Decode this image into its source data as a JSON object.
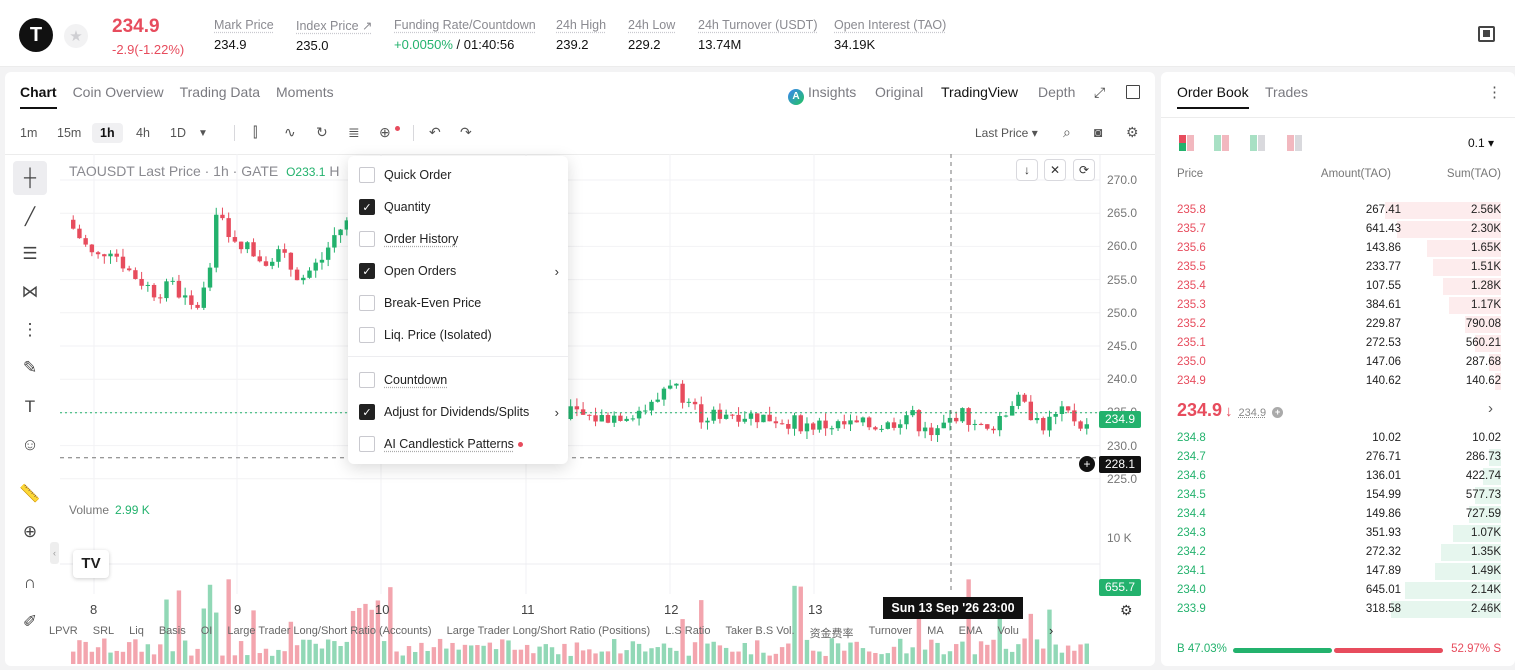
{
  "ticker": {
    "logo_letter": "T",
    "last_price": "234.9",
    "change": "-2.9(-1.22%)",
    "stats": [
      {
        "label": "Mark Price",
        "value": "234.9"
      },
      {
        "label": "Index Price ↗",
        "value": "235.0"
      },
      {
        "label": "Funding Rate/Countdown",
        "value_green": "+0.0050%",
        "value": " / 01:40:56"
      },
      {
        "label": "24h High",
        "value": "239.2"
      },
      {
        "label": "24h Low",
        "value": "229.2"
      },
      {
        "label": "24h Turnover (USDT)",
        "value": "13.74M"
      },
      {
        "label": "Open Interest (TAO)",
        "value": "34.19K"
      }
    ]
  },
  "chart_tabs": [
    "Chart",
    "Coin Overview",
    "Trading Data",
    "Moments"
  ],
  "view_tabs": {
    "insights": "Insights",
    "original": "Original",
    "tradingview": "TradingView",
    "depth": "Depth"
  },
  "toolbar": {
    "intervals": [
      "1m",
      "15m",
      "1h",
      "4h",
      "1D"
    ],
    "price_type": "Last Price ▾"
  },
  "chart": {
    "header": "TAOUSDT Last Price · 1h · GATE",
    "header_o": "O233.1",
    "header_h": "H",
    "yaxis": [
      "270.0",
      "265.0",
      "260.0",
      "255.0",
      "250.0",
      "245.0",
      "240.0",
      "235.0",
      "230.0",
      "225.0"
    ],
    "current_price": "234.9",
    "cursor_price": "228.1",
    "volume_label": "Volume",
    "volume_value": "2.99 K",
    "vol_axis": "10 K",
    "vol_tag": "655.7",
    "xaxis": [
      "8",
      "9",
      "10",
      "11",
      "12",
      "13"
    ],
    "crosshair_time": "Sun 13 Sep '26   23:00"
  },
  "menu": [
    {
      "label": "Quick Order",
      "checked": false
    },
    {
      "label": "Quantity",
      "checked": true
    },
    {
      "label": "Order History",
      "checked": false
    },
    {
      "label": "Open Orders",
      "checked": true,
      "sub": true
    },
    {
      "label": "Break-Even Price",
      "checked": false
    },
    {
      "label": "Liq. Price (Isolated)",
      "checked": false
    },
    {
      "label": "Countdown",
      "checked": false
    },
    {
      "label": "Adjust for Dividends/Splits",
      "checked": true,
      "sub": true
    },
    {
      "label": "AI Candlestick Patterns",
      "checked": false,
      "dot": true
    }
  ],
  "indicators": [
    "LPVR",
    "SRL",
    "Liq",
    "Basis",
    "OI",
    "Large Trader Long/Short Ratio (Accounts)",
    "Large Trader Long/Short Ratio (Positions)",
    "L.S Ratio",
    "Taker B.S Vol.",
    "资金费率",
    "Turnover",
    "MA",
    "EMA",
    "Volu"
  ],
  "orderbook": {
    "tabs": [
      "Order Book",
      "Trades"
    ],
    "precision": "0.1 ▾",
    "headers": [
      "Price",
      "Amount(TAO)",
      "Sum(TAO)"
    ],
    "asks": [
      [
        "235.8",
        "267.41",
        "2.56K",
        0.58
      ],
      [
        "235.7",
        "641.43",
        "2.30K",
        0.52
      ],
      [
        "235.6",
        "143.86",
        "1.65K",
        0.37
      ],
      [
        "235.5",
        "233.77",
        "1.51K",
        0.34
      ],
      [
        "235.4",
        "107.55",
        "1.28K",
        0.29
      ],
      [
        "235.3",
        "384.61",
        "1.17K",
        0.26
      ],
      [
        "235.2",
        "229.87",
        "790.08",
        0.18
      ],
      [
        "235.1",
        "272.53",
        "560.21",
        0.13
      ],
      [
        "235.0",
        "147.06",
        "287.68",
        0.06
      ],
      [
        "234.9",
        "140.62",
        "140.62",
        0.03
      ]
    ],
    "mid_price": "234.9",
    "mid_mark": "234.9",
    "bids": [
      [
        "234.8",
        "10.02",
        "10.02",
        0.0
      ],
      [
        "234.7",
        "276.71",
        "286.73",
        0.06
      ],
      [
        "234.6",
        "136.01",
        "422.74",
        0.09
      ],
      [
        "234.5",
        "154.99",
        "577.73",
        0.13
      ],
      [
        "234.4",
        "149.86",
        "727.59",
        0.16
      ],
      [
        "234.3",
        "351.93",
        "1.07K",
        0.24
      ],
      [
        "234.2",
        "272.32",
        "1.35K",
        0.3
      ],
      [
        "234.1",
        "147.89",
        "1.49K",
        0.33
      ],
      [
        "234.0",
        "645.01",
        "2.14K",
        0.48
      ],
      [
        "233.9",
        "318.58",
        "2.46K",
        0.55
      ]
    ],
    "buy_ratio": "B 47.03%",
    "sell_ratio": "52.97% S",
    "buy_fraction": 0.4703
  },
  "colors": {
    "up": "#23b26d",
    "down": "#e74c5d"
  }
}
